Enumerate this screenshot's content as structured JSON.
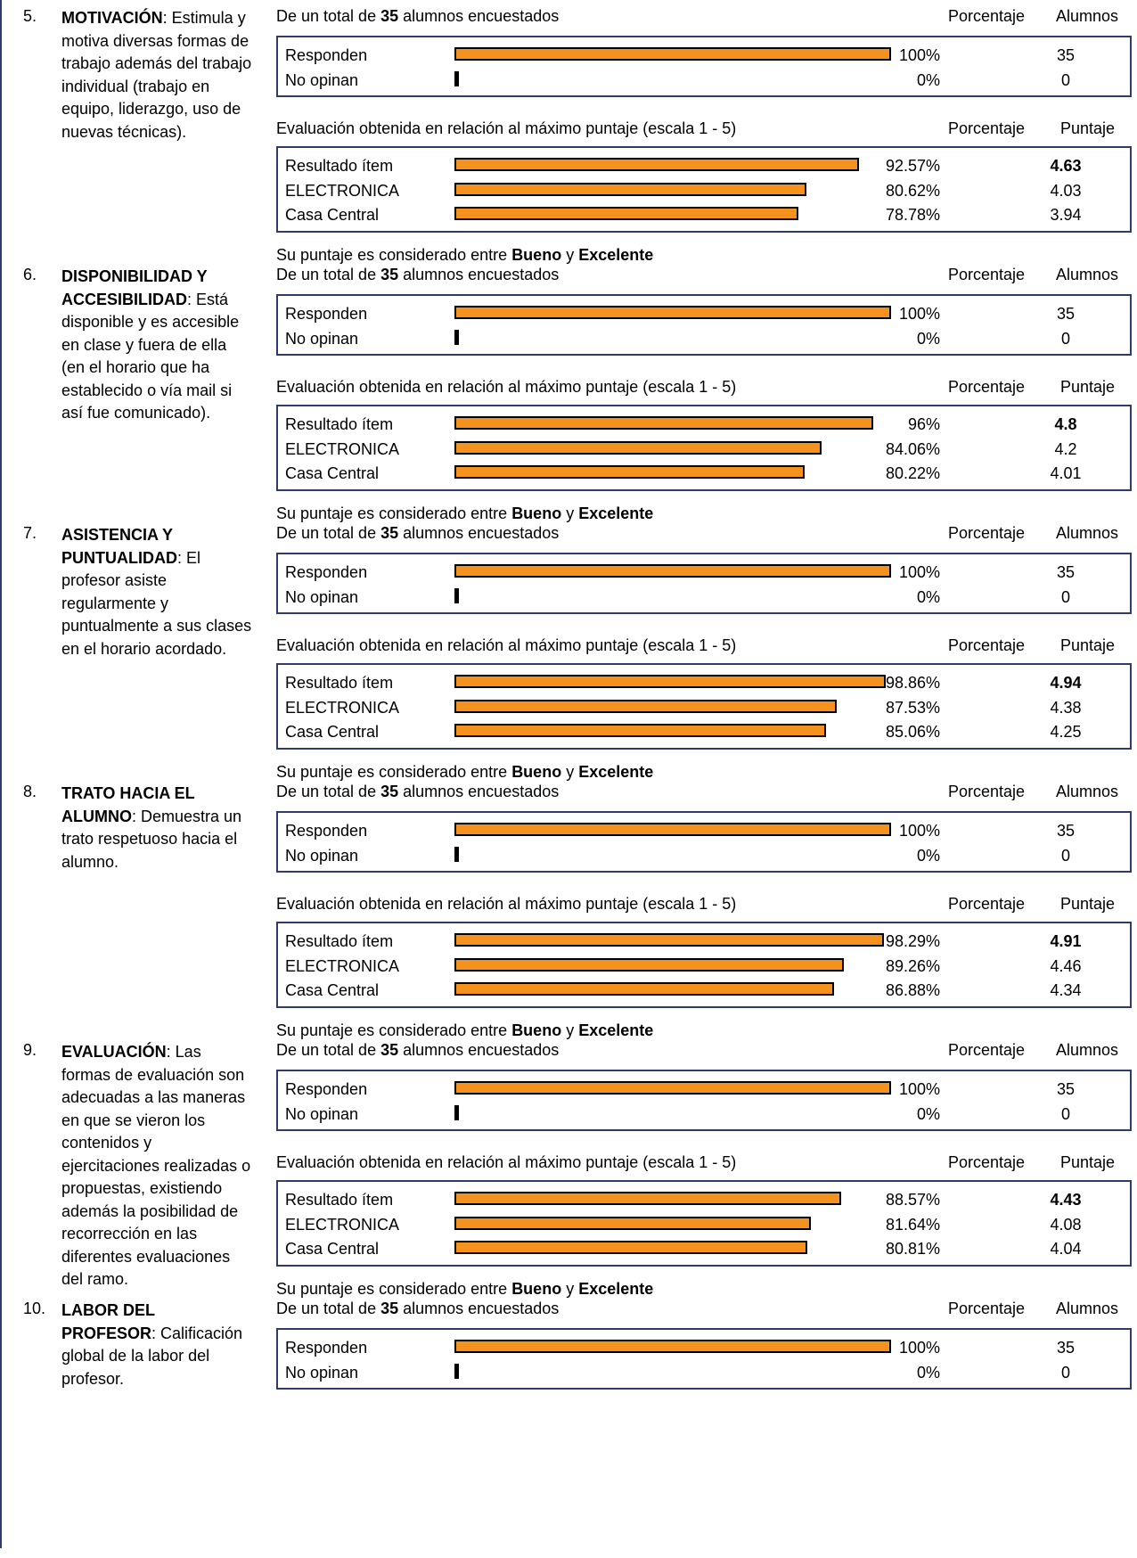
{
  "common": {
    "total_prefix": "De un total de ",
    "total_count": "35",
    "total_suffix": " alumnos encuestados",
    "col_porcentaje": "Porcentaje",
    "col_alumnos": "Alumnos",
    "col_puntaje": "Puntaje",
    "eval_header": "Evaluación obtenida en relación al máximo puntaje (escala 1 - 5)",
    "verdict_prefix": "Su puntaje es considerado entre ",
    "verdict_low": "Bueno",
    "verdict_mid": " y ",
    "verdict_high": "Excelente",
    "bar_color": "#f5921e"
  },
  "sections": [
    {
      "num": "5.",
      "title": "MOTIVACIÓN",
      "desc": ": Estimula y motiva diversas formas de trabajo además del trabajo individual (trabajo en equipo, liderazgo, uso de nuevas técnicas).",
      "response": [
        {
          "label": "Responden",
          "pct": "100%",
          "value": "35",
          "fraction": 1.0
        },
        {
          "label": "No opinan",
          "pct": "0%",
          "value": "0",
          "fraction": 0.0
        }
      ],
      "scores": [
        {
          "label": "Resultado ítem",
          "pct": "92.57%",
          "value": "4.63",
          "fraction": 0.9257
        },
        {
          "label": "ELECTRONICA",
          "pct": "80.62%",
          "value": "4.03",
          "fraction": 0.8062
        },
        {
          "label": "Casa Central",
          "pct": "78.78%",
          "value": "3.94",
          "fraction": 0.7878
        }
      ]
    },
    {
      "num": "6.",
      "title": "DISPONIBILIDAD Y ACCESIBILIDAD",
      "desc": ": Está disponible y es accesible en clase y fuera de ella (en el horario que ha establecido o vía mail si así fue comunicado).",
      "response": [
        {
          "label": "Responden",
          "pct": "100%",
          "value": "35",
          "fraction": 1.0
        },
        {
          "label": "No opinan",
          "pct": "0%",
          "value": "0",
          "fraction": 0.0
        }
      ],
      "scores": [
        {
          "label": "Resultado ítem",
          "pct": "96%",
          "value": "4.8",
          "fraction": 0.96
        },
        {
          "label": "ELECTRONICA",
          "pct": "84.06%",
          "value": "4.2",
          "fraction": 0.8406
        },
        {
          "label": "Casa Central",
          "pct": "80.22%",
          "value": "4.01",
          "fraction": 0.8022
        }
      ]
    },
    {
      "num": "7.",
      "title": "ASISTENCIA Y PUNTUALIDAD",
      "desc": ": El profesor asiste regularmente y puntualmente a sus clases en el horario acordado.",
      "response": [
        {
          "label": "Responden",
          "pct": "100%",
          "value": "35",
          "fraction": 1.0
        },
        {
          "label": "No opinan",
          "pct": "0%",
          "value": "0",
          "fraction": 0.0
        }
      ],
      "scores": [
        {
          "label": "Resultado ítem",
          "pct": "98.86%",
          "value": "4.94",
          "fraction": 0.9886
        },
        {
          "label": "ELECTRONICA",
          "pct": "87.53%",
          "value": "4.38",
          "fraction": 0.8753
        },
        {
          "label": "Casa Central",
          "pct": "85.06%",
          "value": "4.25",
          "fraction": 0.8506
        }
      ]
    },
    {
      "num": "8.",
      "title": "TRATO HACIA EL ALUMNO",
      "desc": ": Demuestra un trato respetuoso hacia el alumno.",
      "response": [
        {
          "label": "Responden",
          "pct": "100%",
          "value": "35",
          "fraction": 1.0
        },
        {
          "label": "No opinan",
          "pct": "0%",
          "value": "0",
          "fraction": 0.0
        }
      ],
      "scores": [
        {
          "label": "Resultado ítem",
          "pct": "98.29%",
          "value": "4.91",
          "fraction": 0.9829
        },
        {
          "label": "ELECTRONICA",
          "pct": "89.26%",
          "value": "4.46",
          "fraction": 0.8926
        },
        {
          "label": "Casa Central",
          "pct": "86.88%",
          "value": "4.34",
          "fraction": 0.8688
        }
      ]
    },
    {
      "num": "9.",
      "title": "EVALUACIÓN",
      "desc": ": Las formas de evaluación son adecuadas a las maneras en que se vieron los contenidos y ejercitaciones realizadas o propuestas, existiendo además la posibilidad de recorrección en las diferentes evaluaciones del ramo.",
      "response": [
        {
          "label": "Responden",
          "pct": "100%",
          "value": "35",
          "fraction": 1.0
        },
        {
          "label": "No opinan",
          "pct": "0%",
          "value": "0",
          "fraction": 0.0
        }
      ],
      "scores": [
        {
          "label": "Resultado ítem",
          "pct": "88.57%",
          "value": "4.43",
          "fraction": 0.8857
        },
        {
          "label": "ELECTRONICA",
          "pct": "81.64%",
          "value": "4.08",
          "fraction": 0.8164
        },
        {
          "label": "Casa Central",
          "pct": "80.81%",
          "value": "4.04",
          "fraction": 0.8081
        }
      ]
    },
    {
      "num": "10.",
      "title": "LABOR DEL PROFESOR",
      "desc": ": Calificación global de la labor del profesor.",
      "response": [
        {
          "label": "Responden",
          "pct": "100%",
          "value": "35",
          "fraction": 1.0
        },
        {
          "label": "No opinan",
          "pct": "0%",
          "value": "0",
          "fraction": 0.0
        }
      ],
      "scores": []
    }
  ]
}
